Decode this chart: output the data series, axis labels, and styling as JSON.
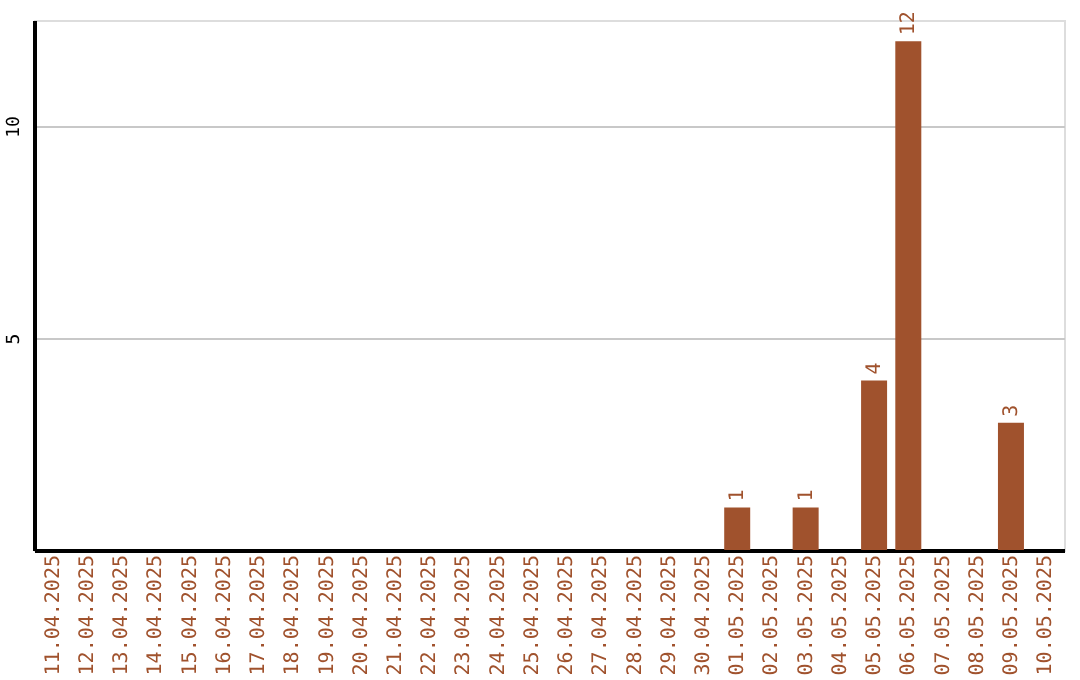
{
  "chart_data": {
    "type": "bar",
    "categories": [
      "11.04.2025",
      "12.04.2025",
      "13.04.2025",
      "14.04.2025",
      "15.04.2025",
      "16.04.2025",
      "17.04.2025",
      "18.04.2025",
      "19.04.2025",
      "20.04.2025",
      "21.04.2025",
      "22.04.2025",
      "23.04.2025",
      "24.04.2025",
      "25.04.2025",
      "26.04.2025",
      "27.04.2025",
      "28.04.2025",
      "29.04.2025",
      "30.04.2025",
      "01.05.2025",
      "02.05.2025",
      "03.05.2025",
      "04.05.2025",
      "05.05.2025",
      "06.05.2025",
      "07.05.2025",
      "08.05.2025",
      "09.05.2025",
      "10.05.2025"
    ],
    "values": [
      0,
      0,
      0,
      0,
      0,
      0,
      0,
      0,
      0,
      0,
      0,
      0,
      0,
      0,
      0,
      0,
      0,
      0,
      0,
      0,
      1,
      0,
      1,
      0,
      4,
      12,
      0,
      0,
      3,
      0
    ],
    "value_labels": [
      null,
      null,
      null,
      null,
      null,
      null,
      null,
      null,
      null,
      null,
      null,
      null,
      null,
      null,
      null,
      null,
      null,
      null,
      null,
      null,
      "1",
      null,
      "1",
      null,
      "4",
      "12",
      null,
      null,
      "3",
      null
    ],
    "color": "#a0522d",
    "ylim": [
      0,
      12.5
    ],
    "yticks": [
      5,
      10
    ],
    "grid": "y"
  }
}
